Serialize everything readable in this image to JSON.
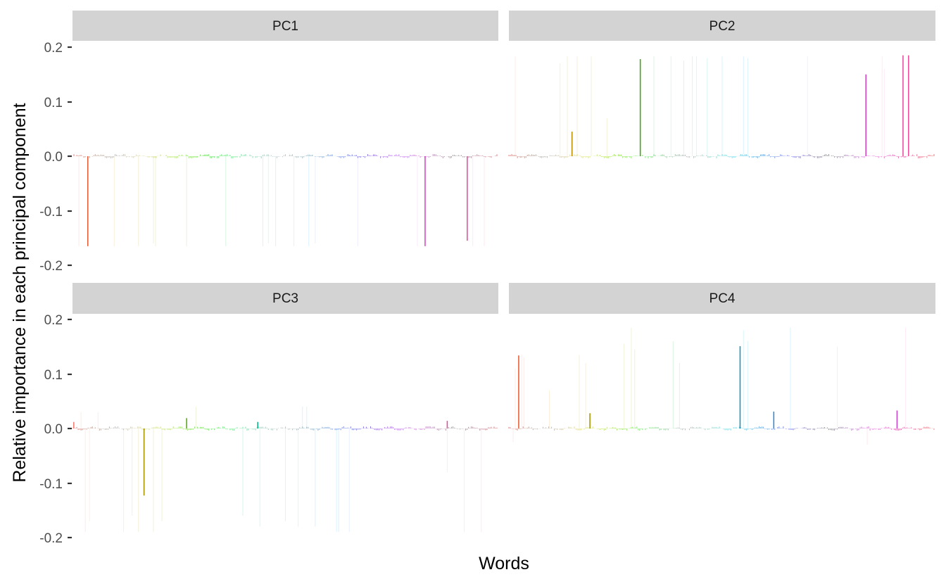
{
  "chart_data": {
    "type": "bar",
    "title": "",
    "xlabel": "Words",
    "ylabel": "Relative importance in each principal component",
    "ylim": [
      -0.2,
      0.2
    ],
    "yticks": [
      "0.2",
      "0.1",
      "0.0",
      "-0.1",
      "-0.2"
    ],
    "ytick_values": [
      0.2,
      0.1,
      0.0,
      -0.1,
      -0.2
    ],
    "grid": false,
    "legend": "none",
    "facets": [
      "PC1",
      "PC2",
      "PC3",
      "PC4"
    ],
    "facet_layout": {
      "rows": 2,
      "cols": 2
    },
    "x_categories_hidden": true,
    "note": "Each facet shows loadings of many words (rainbow hue ordered along x); listed are the clearly visible prominent bars as [x_fraction_of_panel, value, color]. Faint lines are low-alpha bars.",
    "series": [
      {
        "name": "PC1",
        "prominent_bars": [
          [
            0.036,
            -0.165,
            "#E4572E"
          ],
          [
            0.828,
            -0.165,
            "#D63BC7"
          ],
          [
            0.927,
            -0.155,
            "#E8449A"
          ]
        ],
        "faint_bars": [
          [
            0.015,
            -0.165,
            "#F8766D"
          ],
          [
            0.098,
            -0.165,
            "#D89000"
          ],
          [
            0.155,
            -0.165,
            "#C49A00"
          ],
          [
            0.19,
            -0.16,
            "#A3A500"
          ],
          [
            0.195,
            -0.165,
            "#A3A500"
          ],
          [
            0.268,
            -0.165,
            "#7CAE00"
          ],
          [
            0.36,
            -0.165,
            "#00BA38"
          ],
          [
            0.447,
            -0.165,
            "#00C08B"
          ],
          [
            0.46,
            -0.16,
            "#00BFC4"
          ],
          [
            0.477,
            -0.165,
            "#00BFC4"
          ],
          [
            0.52,
            -0.165,
            "#00B4F0"
          ],
          [
            0.555,
            -0.165,
            "#00A9FF"
          ],
          [
            0.57,
            -0.16,
            "#619CFF"
          ],
          [
            0.67,
            -0.165,
            "#9590FF"
          ],
          [
            0.81,
            -0.165,
            "#E76BF3"
          ],
          [
            0.94,
            -0.165,
            "#FF62BC"
          ],
          [
            0.967,
            -0.165,
            "#FF6C91"
          ]
        ]
      },
      {
        "name": "PC2",
        "prominent_bars": [
          [
            0.148,
            0.045,
            "#B58900"
          ],
          [
            0.308,
            0.178,
            "#3AA600"
          ],
          [
            0.837,
            0.15,
            "#D63BC7"
          ],
          [
            0.924,
            0.185,
            "#E8449A"
          ],
          [
            0.937,
            0.185,
            "#E8449A"
          ]
        ],
        "faint_bars": [
          [
            0.015,
            0.183,
            "#F8766D"
          ],
          [
            0.12,
            0.17,
            "#D89000"
          ],
          [
            0.137,
            0.183,
            "#C49A00"
          ],
          [
            0.16,
            0.183,
            "#C49A00"
          ],
          [
            0.193,
            0.183,
            "#A3A500"
          ],
          [
            0.23,
            0.07,
            "#A3A500"
          ],
          [
            0.34,
            0.183,
            "#00BA38"
          ],
          [
            0.38,
            0.183,
            "#00C08B"
          ],
          [
            0.41,
            0.175,
            "#00C08B"
          ],
          [
            0.43,
            0.183,
            "#00BFC4"
          ],
          [
            0.44,
            0.183,
            "#00BFC4"
          ],
          [
            0.465,
            0.18,
            "#00BFC4"
          ],
          [
            0.5,
            0.183,
            "#00B4F0"
          ],
          [
            0.55,
            0.183,
            "#00A9FF"
          ],
          [
            0.56,
            0.18,
            "#00A9FF"
          ],
          [
            0.7,
            0.183,
            "#9590FF"
          ],
          [
            0.875,
            0.183,
            "#FF62BC"
          ],
          [
            0.88,
            0.16,
            "#FF62BC"
          ]
        ]
      },
      {
        "name": "PC3",
        "prominent_bars": [
          [
            0.003,
            0.012,
            "#F8766D"
          ],
          [
            0.168,
            -0.123,
            "#9E8F00"
          ],
          [
            0.268,
            0.019,
            "#4DAA00"
          ],
          [
            0.435,
            0.012,
            "#00B08A"
          ],
          [
            0.88,
            0.014,
            "#E8449A"
          ]
        ],
        "faint_bars": [
          [
            0.03,
            -0.19,
            "#F8766D"
          ],
          [
            0.04,
            -0.17,
            "#F8766D"
          ],
          [
            0.12,
            -0.19,
            "#D89000"
          ],
          [
            0.14,
            -0.16,
            "#D89000"
          ],
          [
            0.155,
            -0.19,
            "#C49A00"
          ],
          [
            0.19,
            -0.19,
            "#A3A500"
          ],
          [
            0.21,
            -0.17,
            "#A3A500"
          ],
          [
            0.4,
            -0.16,
            "#00C08B"
          ],
          [
            0.44,
            -0.18,
            "#00BFC4"
          ],
          [
            0.5,
            -0.17,
            "#00BFC4"
          ],
          [
            0.53,
            -0.18,
            "#00B4F0"
          ],
          [
            0.57,
            -0.18,
            "#00A9FF"
          ],
          [
            0.62,
            -0.19,
            "#00A9FF"
          ],
          [
            0.625,
            -0.19,
            "#00A9FF"
          ],
          [
            0.65,
            -0.19,
            "#619CFF"
          ],
          [
            0.88,
            -0.08,
            "#FF62BC"
          ],
          [
            0.92,
            -0.19,
            "#FF6C91"
          ],
          [
            0.96,
            -0.19,
            "#FF6C91"
          ],
          [
            0.02,
            0.03,
            "#F8766D"
          ],
          [
            0.06,
            0.03,
            "#F8766D"
          ],
          [
            0.29,
            0.04,
            "#7CAE00"
          ],
          [
            0.54,
            0.04,
            "#00B4F0"
          ],
          [
            0.55,
            0.04,
            "#00B4F0"
          ]
        ]
      },
      {
        "name": "PC4",
        "prominent_bars": [
          [
            0.023,
            0.134,
            "#E4572E"
          ],
          [
            0.19,
            0.028,
            "#9E8F00"
          ],
          [
            0.542,
            0.151,
            "#0098C8"
          ],
          [
            0.621,
            0.031,
            "#1E88E5"
          ],
          [
            0.91,
            0.033,
            "#C03EC8"
          ]
        ],
        "faint_bars": [
          [
            0.01,
            -0.025,
            "#F8766D"
          ],
          [
            0.015,
            0.11,
            "#F8766D"
          ],
          [
            0.03,
            0.135,
            "#F8766D"
          ],
          [
            0.035,
            0.13,
            "#F8766D"
          ],
          [
            0.095,
            0.07,
            "#D89000"
          ],
          [
            0.165,
            0.135,
            "#C49A00"
          ],
          [
            0.18,
            0.12,
            "#C49A00"
          ],
          [
            0.27,
            0.155,
            "#A3A500"
          ],
          [
            0.287,
            0.185,
            "#A3A500"
          ],
          [
            0.295,
            0.145,
            "#7CAE00"
          ],
          [
            0.385,
            0.16,
            "#00BA38"
          ],
          [
            0.4,
            0.12,
            "#00C08B"
          ],
          [
            0.55,
            0.18,
            "#00BFC4"
          ],
          [
            0.56,
            0.16,
            "#00B4F0"
          ],
          [
            0.66,
            0.185,
            "#00A9FF"
          ],
          [
            0.77,
            0.15,
            "#9590FF"
          ],
          [
            0.93,
            0.185,
            "#FF62BC"
          ],
          [
            0.84,
            -0.03,
            "#FF6C91"
          ]
        ]
      }
    ]
  },
  "panels": [
    {
      "strip": "PC1"
    },
    {
      "strip": "PC2"
    },
    {
      "strip": "PC3"
    },
    {
      "strip": "PC4"
    }
  ],
  "axes": {
    "x_title": "Words",
    "y_title": "Relative importance in each principal component",
    "y_ticks": [
      "0.2",
      "0.1",
      "0.0",
      "-0.1",
      "-0.2"
    ]
  },
  "colors": {
    "strip_bg": "#D3D3D3",
    "panel_bg": "#FFFFFF",
    "tick_text": "#4D4D4D",
    "tick_mark": "#333333"
  }
}
